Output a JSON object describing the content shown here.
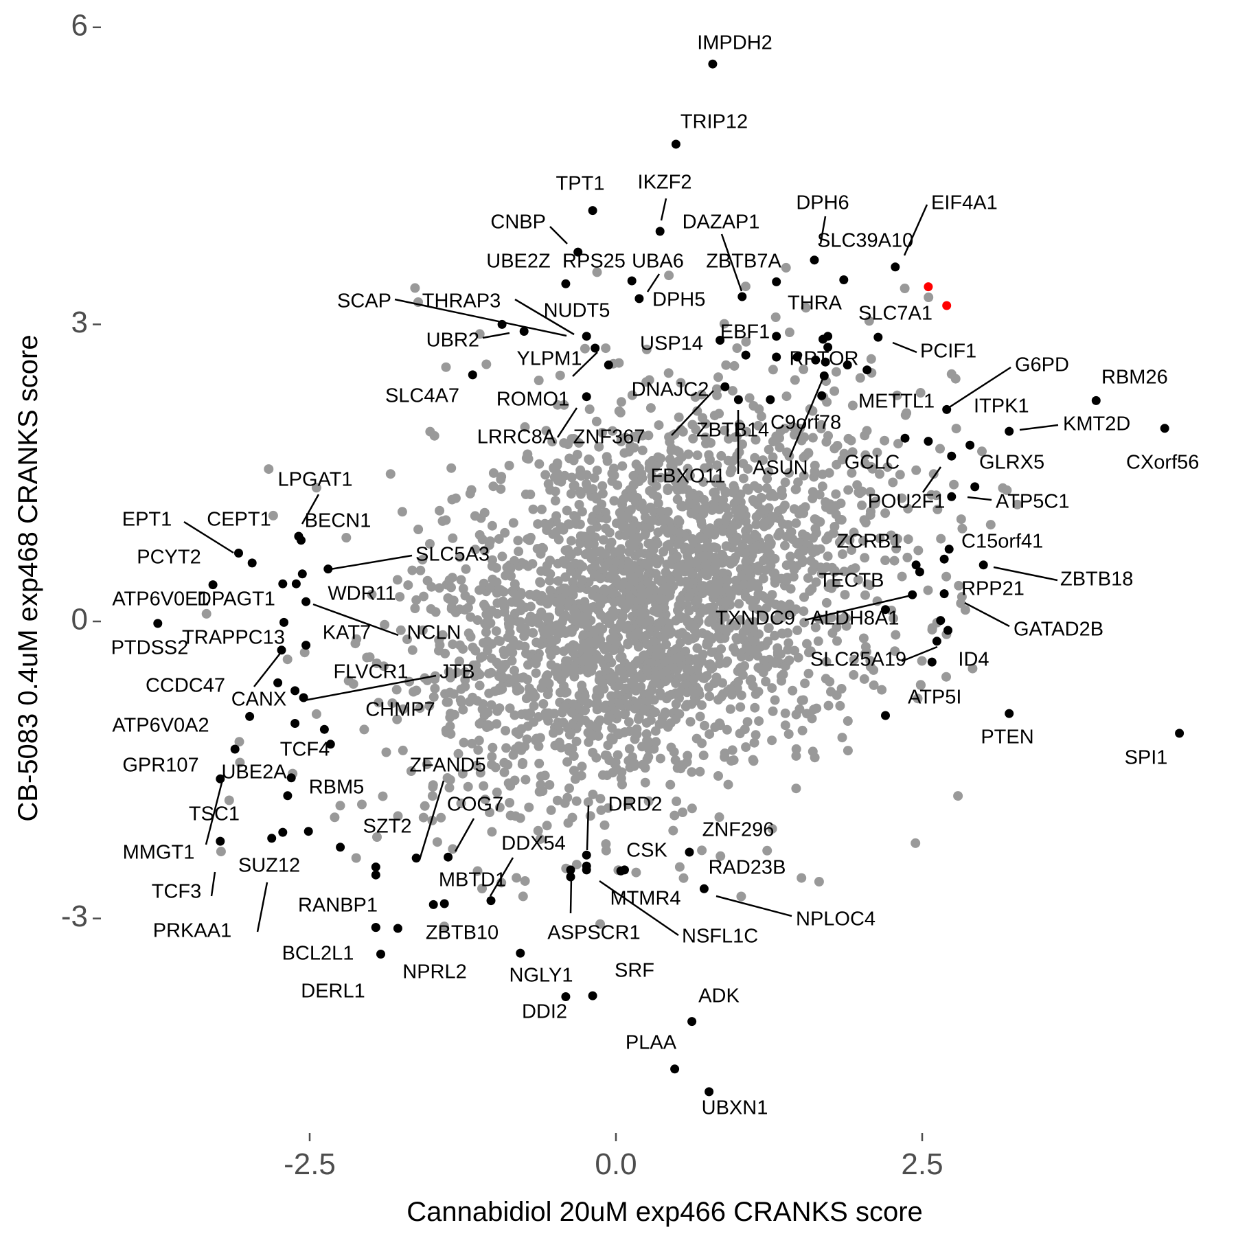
{
  "chart_data": {
    "type": "scatter",
    "xlabel": "Cannabidiol 20uM exp466 CRANKS score",
    "ylabel": "CB-5083 0.4uM exp468 CRANKS score",
    "xlim": [
      -4.3,
      5.0
    ],
    "ylim": [
      -5.1,
      6.3
    ],
    "x_ticks": [
      -2.5,
      0.0,
      2.5
    ],
    "x_tick_labels": [
      "-2.5",
      "0.0",
      "2.5"
    ],
    "y_ticks": [
      -3,
      0,
      3,
      6
    ],
    "y_tick_labels": [
      "-3",
      "0",
      "3",
      "6"
    ],
    "grid": false,
    "colors": {
      "background_points": "#999999",
      "labeled_points": "#000000",
      "highlight_points": "#ff0000",
      "axis_text": "#4d4d4d"
    },
    "background_cloud": {
      "color": "#999999",
      "center": [
        0.3,
        0.2
      ],
      "core_sd": [
        0.85,
        0.9
      ],
      "outer_sd": [
        1.3,
        1.3
      ],
      "approx_count": 2600
    },
    "highlighted_points": [
      {
        "x": 2.55,
        "y": 3.38
      },
      {
        "x": 2.7,
        "y": 3.19
      }
    ],
    "labeled_points": [
      {
        "label": "IMPDH2",
        "x": 0.79,
        "y": 5.63
      },
      {
        "label": "TRIP12",
        "x": 0.49,
        "y": 4.82
      },
      {
        "label": "TPT1",
        "x": -0.19,
        "y": 4.15
      },
      {
        "label": "IKZF2",
        "x": 0.36,
        "y": 3.94
      },
      {
        "label": "CNBP",
        "x": -0.31,
        "y": 3.73
      },
      {
        "label": "DAZAP1",
        "x": 1.03,
        "y": 3.28
      },
      {
        "label": "DPH6",
        "x": 1.62,
        "y": 3.65
      },
      {
        "label": "EIF4A1",
        "x": 2.28,
        "y": 3.58
      },
      {
        "label": "SLC39A10",
        "x": 1.86,
        "y": 3.45
      },
      {
        "label": "UBE2Z",
        "x": -0.41,
        "y": 3.41
      },
      {
        "label": "RPS25",
        "x": 0.13,
        "y": 3.44
      },
      {
        "label": "UBA6",
        "x": 0.19,
        "y": 3.26
      },
      {
        "label": "ZBTB7A",
        "x": 1.31,
        "y": 3.43
      },
      {
        "label": "DPH5",
        "x": 0.19,
        "y": 3.26
      },
      {
        "label": "SCAP",
        "x": -0.93,
        "y": 3.0
      },
      {
        "label": "THRAP3",
        "x": -0.24,
        "y": 2.88
      },
      {
        "label": "NUDT5",
        "x": -0.17,
        "y": 2.76
      },
      {
        "label": "UBR2",
        "x": -0.75,
        "y": 2.93
      },
      {
        "label": "THRA",
        "x": 1.73,
        "y": 2.88
      },
      {
        "label": "SLC7A1",
        "x": 2.14,
        "y": 2.87
      },
      {
        "label": "USP14",
        "x": 0.85,
        "y": 2.84
      },
      {
        "label": "EBF1",
        "x": 1.06,
        "y": 2.69
      },
      {
        "label": "PCIF1",
        "x": 2.14,
        "y": 2.87
      },
      {
        "label": "YLPM1",
        "x": -0.06,
        "y": 2.59
      },
      {
        "label": "RPTOR",
        "x": 1.63,
        "y": 2.64
      },
      {
        "label": "SLC4A7",
        "x": -1.17,
        "y": 2.49
      },
      {
        "label": "G6PD",
        "x": 2.7,
        "y": 2.14
      },
      {
        "label": "RBM26",
        "x": 3.92,
        "y": 2.23
      },
      {
        "label": "ROMO1",
        "x": -0.24,
        "y": 2.27
      },
      {
        "label": "METTL1",
        "x": 2.7,
        "y": 2.14
      },
      {
        "label": "DNAJC2",
        "x": 0.89,
        "y": 2.37
      },
      {
        "label": "ITPK1",
        "x": 3.21,
        "y": 1.92
      },
      {
        "label": "KMT2D",
        "x": 3.21,
        "y": 1.92
      },
      {
        "label": "C9orf78",
        "x": 1.7,
        "y": 2.48
      },
      {
        "label": "LRRC8A",
        "x": -0.24,
        "y": 2.27
      },
      {
        "label": "ZNF367",
        "x": 0.89,
        "y": 2.37
      },
      {
        "label": "ZBTB14",
        "x": 1.0,
        "y": 2.24
      },
      {
        "label": "CXorf56",
        "x": 4.48,
        "y": 1.95
      },
      {
        "label": "GCLC",
        "x": 2.55,
        "y": 1.82
      },
      {
        "label": "FBXO11",
        "x": 1.0,
        "y": 2.24
      },
      {
        "label": "ASUN",
        "x": 1.7,
        "y": 2.48
      },
      {
        "label": "GLRX5",
        "x": 2.89,
        "y": 1.78
      },
      {
        "label": "LPGAT1",
        "x": -2.59,
        "y": 0.86
      },
      {
        "label": "POU2F1",
        "x": 2.74,
        "y": 1.67
      },
      {
        "label": "ATP5C1",
        "x": 2.74,
        "y": 1.26
      },
      {
        "label": "EPT1",
        "x": -3.08,
        "y": 0.69
      },
      {
        "label": "CEPT1",
        "x": -2.97,
        "y": 0.59
      },
      {
        "label": "BECN1",
        "x": -2.57,
        "y": 0.82
      },
      {
        "label": "ZCRB1",
        "x": 2.48,
        "y": 0.5
      },
      {
        "label": "C15orf41",
        "x": 2.72,
        "y": 0.73
      },
      {
        "label": "PCYT2",
        "x": -3.29,
        "y": 0.37
      },
      {
        "label": "SLC5A3",
        "x": -2.35,
        "y": 0.53
      },
      {
        "label": "ZBTB18",
        "x": 3.0,
        "y": 0.57
      },
      {
        "label": "TECTB",
        "x": 2.42,
        "y": 0.27
      },
      {
        "label": "RPP21",
        "x": 2.68,
        "y": 0.28
      },
      {
        "label": "ATP6V0E1",
        "x": -3.29,
        "y": 0.37
      },
      {
        "label": "DPAGT1",
        "x": -2.53,
        "y": 0.2
      },
      {
        "label": "WDR11",
        "x": -2.53,
        "y": 0.2
      },
      {
        "label": "TXNDC9",
        "x": 2.42,
        "y": 0.27
      },
      {
        "label": "ALDH8A1",
        "x": 2.68,
        "y": 0.28
      },
      {
        "label": "GATAD2B",
        "x": 2.68,
        "y": 0.28
      },
      {
        "label": "PTDSS2",
        "x": -3.74,
        "y": -0.02
      },
      {
        "label": "NCLN",
        "x": -2.53,
        "y": 0.2
      },
      {
        "label": "TRAPPC13",
        "x": -2.71,
        "y": -0.01
      },
      {
        "label": "KAT7",
        "x": -2.53,
        "y": -0.24
      },
      {
        "label": "SLC25A19",
        "x": 2.62,
        "y": -0.2
      },
      {
        "label": "ID4",
        "x": 2.58,
        "y": -0.41
      },
      {
        "label": "CCDC47",
        "x": -2.73,
        "y": -0.29
      },
      {
        "label": "FLVCR1",
        "x": -2.62,
        "y": -0.7
      },
      {
        "label": "JTB",
        "x": -2.55,
        "y": -0.77
      },
      {
        "label": "CANX",
        "x": -2.55,
        "y": -0.77
      },
      {
        "label": "ATP5I",
        "x": 2.2,
        "y": -0.95
      },
      {
        "label": "CHMP7",
        "x": -2.38,
        "y": -1.09
      },
      {
        "label": "PTEN",
        "x": 3.21,
        "y": -0.93
      },
      {
        "label": "ATP6V0A2",
        "x": -2.99,
        "y": -0.96
      },
      {
        "label": "SPI1",
        "x": 4.6,
        "y": -1.13
      },
      {
        "label": "TCF4",
        "x": -2.65,
        "y": -1.58
      },
      {
        "label": "GPR107",
        "x": -3.11,
        "y": -1.29
      },
      {
        "label": "UBE2A",
        "x": -3.23,
        "y": -1.59
      },
      {
        "label": "ZFAND5",
        "x": -1.63,
        "y": -2.39
      },
      {
        "label": "RBM5",
        "x": -2.68,
        "y": -1.76
      },
      {
        "label": "DRD2",
        "x": -0.24,
        "y": -2.36
      },
      {
        "label": "COG7",
        "x": -1.37,
        "y": -2.38
      },
      {
        "label": "TSC1",
        "x": -3.23,
        "y": -1.59
      },
      {
        "label": "SZT2",
        "x": -1.63,
        "y": -2.39
      },
      {
        "label": "ZNF296",
        "x": 0.6,
        "y": -2.33
      },
      {
        "label": "MMGT1",
        "x": -3.23,
        "y": -2.22
      },
      {
        "label": "DDX54",
        "x": -1.02,
        "y": -2.82
      },
      {
        "label": "CSK",
        "x": 0.07,
        "y": -2.51
      },
      {
        "label": "SUZ12",
        "x": -2.81,
        "y": -2.19
      },
      {
        "label": "TCF3",
        "x": -3.23,
        "y": -2.22
      },
      {
        "label": "RAD23B",
        "x": 0.72,
        "y": -2.7
      },
      {
        "label": "MBTD1",
        "x": -1.02,
        "y": -2.82
      },
      {
        "label": "MTMR4",
        "x": -0.24,
        "y": -2.36
      },
      {
        "label": "RANBP1",
        "x": -1.96,
        "y": -2.48
      },
      {
        "label": "NPLOC4",
        "x": 0.72,
        "y": -2.7
      },
      {
        "label": "PRKAA1",
        "x": -2.81,
        "y": -2.19
      },
      {
        "label": "ZBTB10",
        "x": -1.4,
        "y": -2.85
      },
      {
        "label": "ASPSCR1",
        "x": -0.37,
        "y": -2.51
      },
      {
        "label": "NSFL1C",
        "x": -0.24,
        "y": -2.51
      },
      {
        "label": "BCL2L1",
        "x": -1.96,
        "y": -3.09
      },
      {
        "label": "NPRL2",
        "x": -1.78,
        "y": -3.1
      },
      {
        "label": "NGLY1",
        "x": -0.78,
        "y": -3.35
      },
      {
        "label": "SRF",
        "x": -0.19,
        "y": -3.78
      },
      {
        "label": "DERL1",
        "x": -1.92,
        "y": -3.36
      },
      {
        "label": "DDI2",
        "x": -0.41,
        "y": -3.79
      },
      {
        "label": "ADK",
        "x": 0.62,
        "y": -4.04
      },
      {
        "label": "PLAA",
        "x": 0.48,
        "y": -4.52
      },
      {
        "label": "UBXN1",
        "x": 0.76,
        "y": -4.75
      }
    ],
    "unlabeled_black_points": [
      {
        "x": 1.31,
        "y": 2.88
      },
      {
        "x": 1.48,
        "y": 2.67
      },
      {
        "x": 1.31,
        "y": 2.67
      },
      {
        "x": 1.69,
        "y": 2.85
      },
      {
        "x": 1.73,
        "y": 2.77
      },
      {
        "x": 1.71,
        "y": 2.62
      },
      {
        "x": 1.89,
        "y": 2.59
      },
      {
        "x": 2.05,
        "y": 2.54
      },
      {
        "x": 1.68,
        "y": 2.28
      },
      {
        "x": 1.26,
        "y": 2.24
      },
      {
        "x": 2.36,
        "y": 1.85
      },
      {
        "x": 2.93,
        "y": 1.36
      },
      {
        "x": 2.45,
        "y": 0.57
      },
      {
        "x": 2.68,
        "y": 0.63
      },
      {
        "x": 2.65,
        "y": 0.01
      },
      {
        "x": 2.71,
        "y": -0.09
      },
      {
        "x": 2.2,
        "y": 0.12
      },
      {
        "x": -2.72,
        "y": 0.38
      },
      {
        "x": -2.56,
        "y": 0.48
      },
      {
        "x": -2.61,
        "y": 0.38
      },
      {
        "x": -2.76,
        "y": -0.62
      },
      {
        "x": -2.33,
        "y": -1.24
      },
      {
        "x": -2.62,
        "y": -1.03
      },
      {
        "x": -2.51,
        "y": -2.12
      },
      {
        "x": -2.72,
        "y": -2.13
      },
      {
        "x": -2.25,
        "y": -2.28
      },
      {
        "x": -1.96,
        "y": -2.56
      },
      {
        "x": -1.49,
        "y": -2.86
      },
      {
        "x": -0.37,
        "y": -2.58
      },
      {
        "x": -0.24,
        "y": -2.47
      },
      {
        "x": 0.04,
        "y": -2.52
      },
      {
        "x": -1.96,
        "y": -3.09
      }
    ]
  }
}
